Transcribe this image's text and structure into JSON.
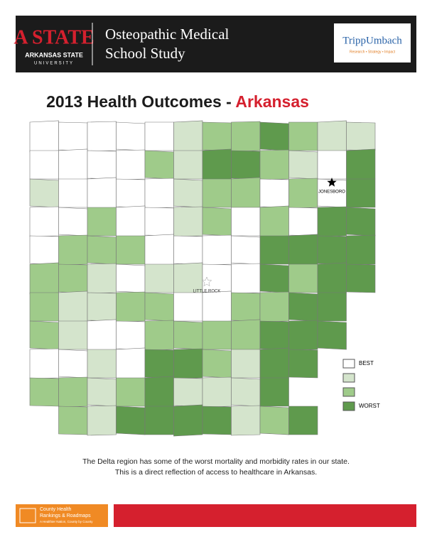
{
  "header": {
    "logo_mark": "A STATE",
    "logo_name": "ARKANSAS STATE",
    "logo_sub": "UNIVERSITY",
    "title_line1": "Osteopathic Medical",
    "title_line2": "School Study",
    "partner": "TrippUmbach",
    "partner_tagline": "Research • Strategy • Impact"
  },
  "title": {
    "main": "2013 Health Outcomes - ",
    "state": "Arkansas"
  },
  "map": {
    "cities": [
      "JONESBORO",
      "LITTLE ROCK"
    ],
    "legend": [
      "BEST",
      "WORST"
    ]
  },
  "caption": [
    "The Delta region has some of the worst mortality and morbidity rates in our state.",
    "This is a direct reflection of access to healthcare in Arkansas."
  ],
  "footer": {
    "brand_line1": "County Health",
    "brand_line2": "Rankings & Roadmaps",
    "brand_tagline": "A Healthier Nation, County by County"
  }
}
